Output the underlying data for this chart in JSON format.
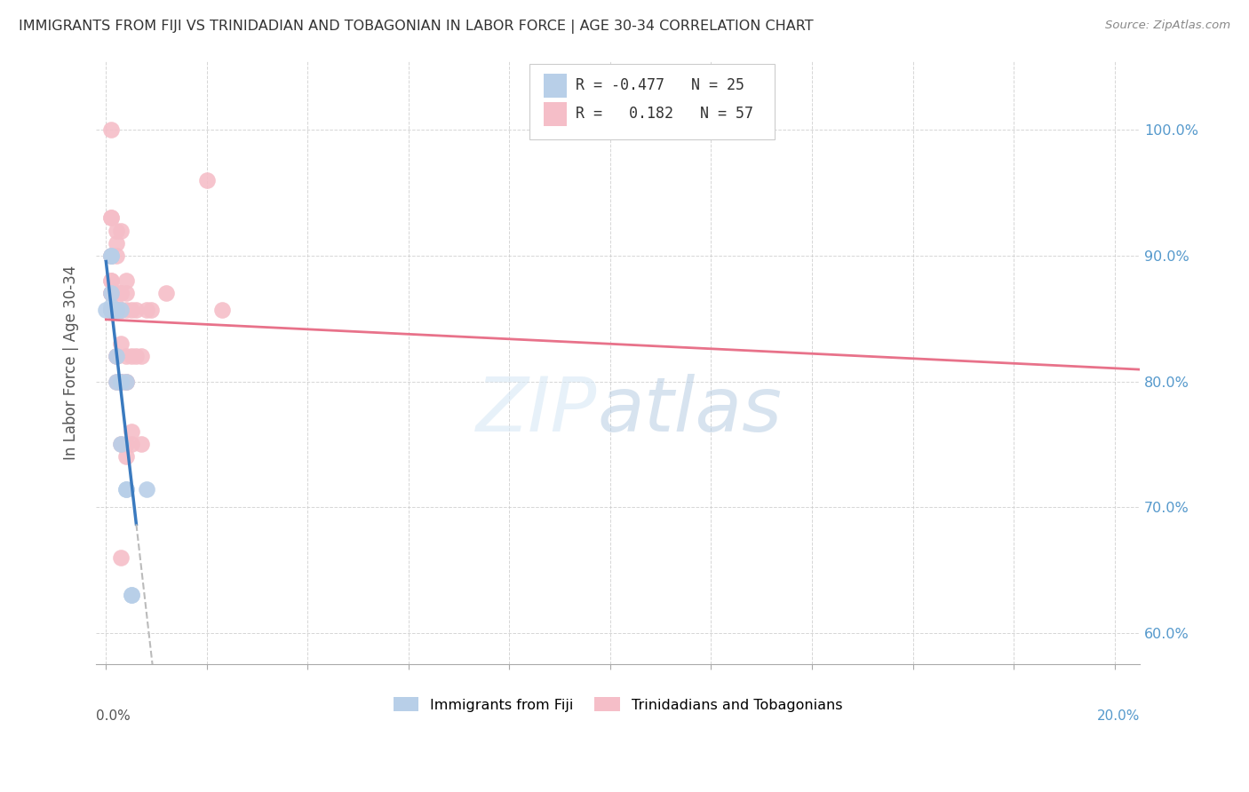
{
  "title": "IMMIGRANTS FROM FIJI VS TRINIDADIAN AND TOBAGONIAN IN LABOR FORCE | AGE 30-34 CORRELATION CHART",
  "source": "Source: ZipAtlas.com",
  "ylabel": "In Labor Force | Age 30-34",
  "fiji_R": "-0.477",
  "fiji_N": "25",
  "tt_R": "0.182",
  "tt_N": "57",
  "fiji_color": "#b8cfe8",
  "tt_color": "#f5bec8",
  "fiji_line_color": "#3a7abf",
  "tt_line_color": "#e8728a",
  "dashed_line_color": "#bbbbbb",
  "fiji_points": [
    [
      0.0,
      0.857
    ],
    [
      0.001,
      0.86
    ],
    [
      0.001,
      0.87
    ],
    [
      0.001,
      0.857
    ],
    [
      0.001,
      0.857
    ],
    [
      0.001,
      0.9
    ],
    [
      0.001,
      0.9
    ],
    [
      0.001,
      0.857
    ],
    [
      0.001,
      0.857
    ],
    [
      0.001,
      0.857
    ],
    [
      0.001,
      0.857
    ],
    [
      0.002,
      0.857
    ],
    [
      0.002,
      0.857
    ],
    [
      0.002,
      0.857
    ],
    [
      0.002,
      0.82
    ],
    [
      0.002,
      0.8
    ],
    [
      0.003,
      0.857
    ],
    [
      0.003,
      0.8
    ],
    [
      0.003,
      0.75
    ],
    [
      0.004,
      0.8
    ],
    [
      0.004,
      0.714
    ],
    [
      0.004,
      0.714
    ],
    [
      0.005,
      0.63
    ],
    [
      0.005,
      0.63
    ],
    [
      0.008,
      0.714
    ]
  ],
  "tt_points": [
    [
      0.001,
      0.9
    ],
    [
      0.001,
      0.93
    ],
    [
      0.001,
      0.93
    ],
    [
      0.001,
      1.0
    ],
    [
      0.001,
      0.87
    ],
    [
      0.001,
      0.87
    ],
    [
      0.001,
      0.9
    ],
    [
      0.001,
      0.88
    ],
    [
      0.001,
      0.88
    ],
    [
      0.001,
      0.857
    ],
    [
      0.001,
      0.857
    ],
    [
      0.001,
      0.87
    ],
    [
      0.002,
      0.92
    ],
    [
      0.002,
      0.91
    ],
    [
      0.002,
      0.9
    ],
    [
      0.002,
      0.87
    ],
    [
      0.002,
      0.87
    ],
    [
      0.002,
      0.857
    ],
    [
      0.002,
      0.857
    ],
    [
      0.002,
      0.857
    ],
    [
      0.002,
      0.857
    ],
    [
      0.002,
      0.82
    ],
    [
      0.002,
      0.82
    ],
    [
      0.002,
      0.8
    ],
    [
      0.003,
      0.92
    ],
    [
      0.003,
      0.87
    ],
    [
      0.003,
      0.87
    ],
    [
      0.003,
      0.857
    ],
    [
      0.003,
      0.857
    ],
    [
      0.003,
      0.857
    ],
    [
      0.003,
      0.857
    ],
    [
      0.003,
      0.83
    ],
    [
      0.003,
      0.8
    ],
    [
      0.003,
      0.8
    ],
    [
      0.003,
      0.75
    ],
    [
      0.003,
      0.66
    ],
    [
      0.004,
      0.88
    ],
    [
      0.004,
      0.87
    ],
    [
      0.004,
      0.857
    ],
    [
      0.004,
      0.82
    ],
    [
      0.004,
      0.8
    ],
    [
      0.004,
      0.8
    ],
    [
      0.004,
      0.75
    ],
    [
      0.004,
      0.74
    ],
    [
      0.005,
      0.857
    ],
    [
      0.005,
      0.82
    ],
    [
      0.005,
      0.76
    ],
    [
      0.005,
      0.75
    ],
    [
      0.006,
      0.857
    ],
    [
      0.006,
      0.82
    ],
    [
      0.007,
      0.82
    ],
    [
      0.007,
      0.75
    ],
    [
      0.008,
      0.857
    ],
    [
      0.009,
      0.857
    ],
    [
      0.012,
      0.87
    ],
    [
      0.02,
      0.96
    ],
    [
      0.023,
      0.857
    ]
  ],
  "xlim_min": 0.0,
  "xlim_max": 0.205,
  "ylim_min": 0.575,
  "ylim_max": 1.055,
  "x_ticks": [
    0.0,
    0.02,
    0.04,
    0.06,
    0.08,
    0.1,
    0.12,
    0.14,
    0.16,
    0.18,
    0.2
  ],
  "y_ticks": [
    0.6,
    0.7,
    0.8,
    0.9,
    1.0
  ],
  "y_tick_labels_right": [
    "60.0%",
    "70.0%",
    "80.0%",
    "90.0%",
    "100.0%"
  ],
  "watermark_zip": "ZIP",
  "watermark_atlas": "atlas",
  "legend_fiji_label": "Immigrants from Fiji",
  "legend_tt_label": "Trinidadians and Tobagonians"
}
